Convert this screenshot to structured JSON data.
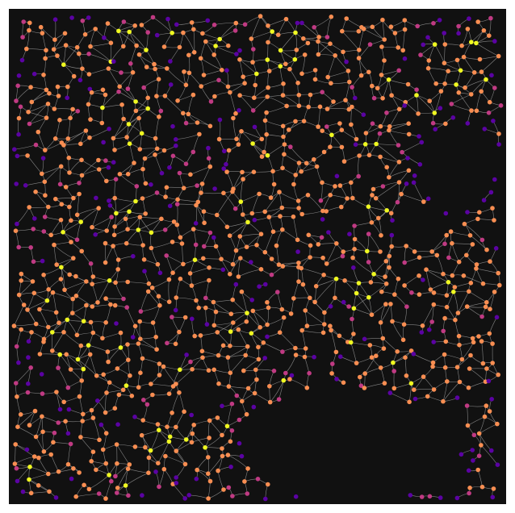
{
  "map": {
    "type": "street-network-graph",
    "background_color": "#111111",
    "edge_color": "#999999",
    "node_palette": "plasma",
    "node_color_classes": {
      "deg1": "#5b02a3",
      "deg2": "#c03a83",
      "deg3": "#f98e52",
      "deg4plus": "#f0f921"
    },
    "text_labels": []
  }
}
